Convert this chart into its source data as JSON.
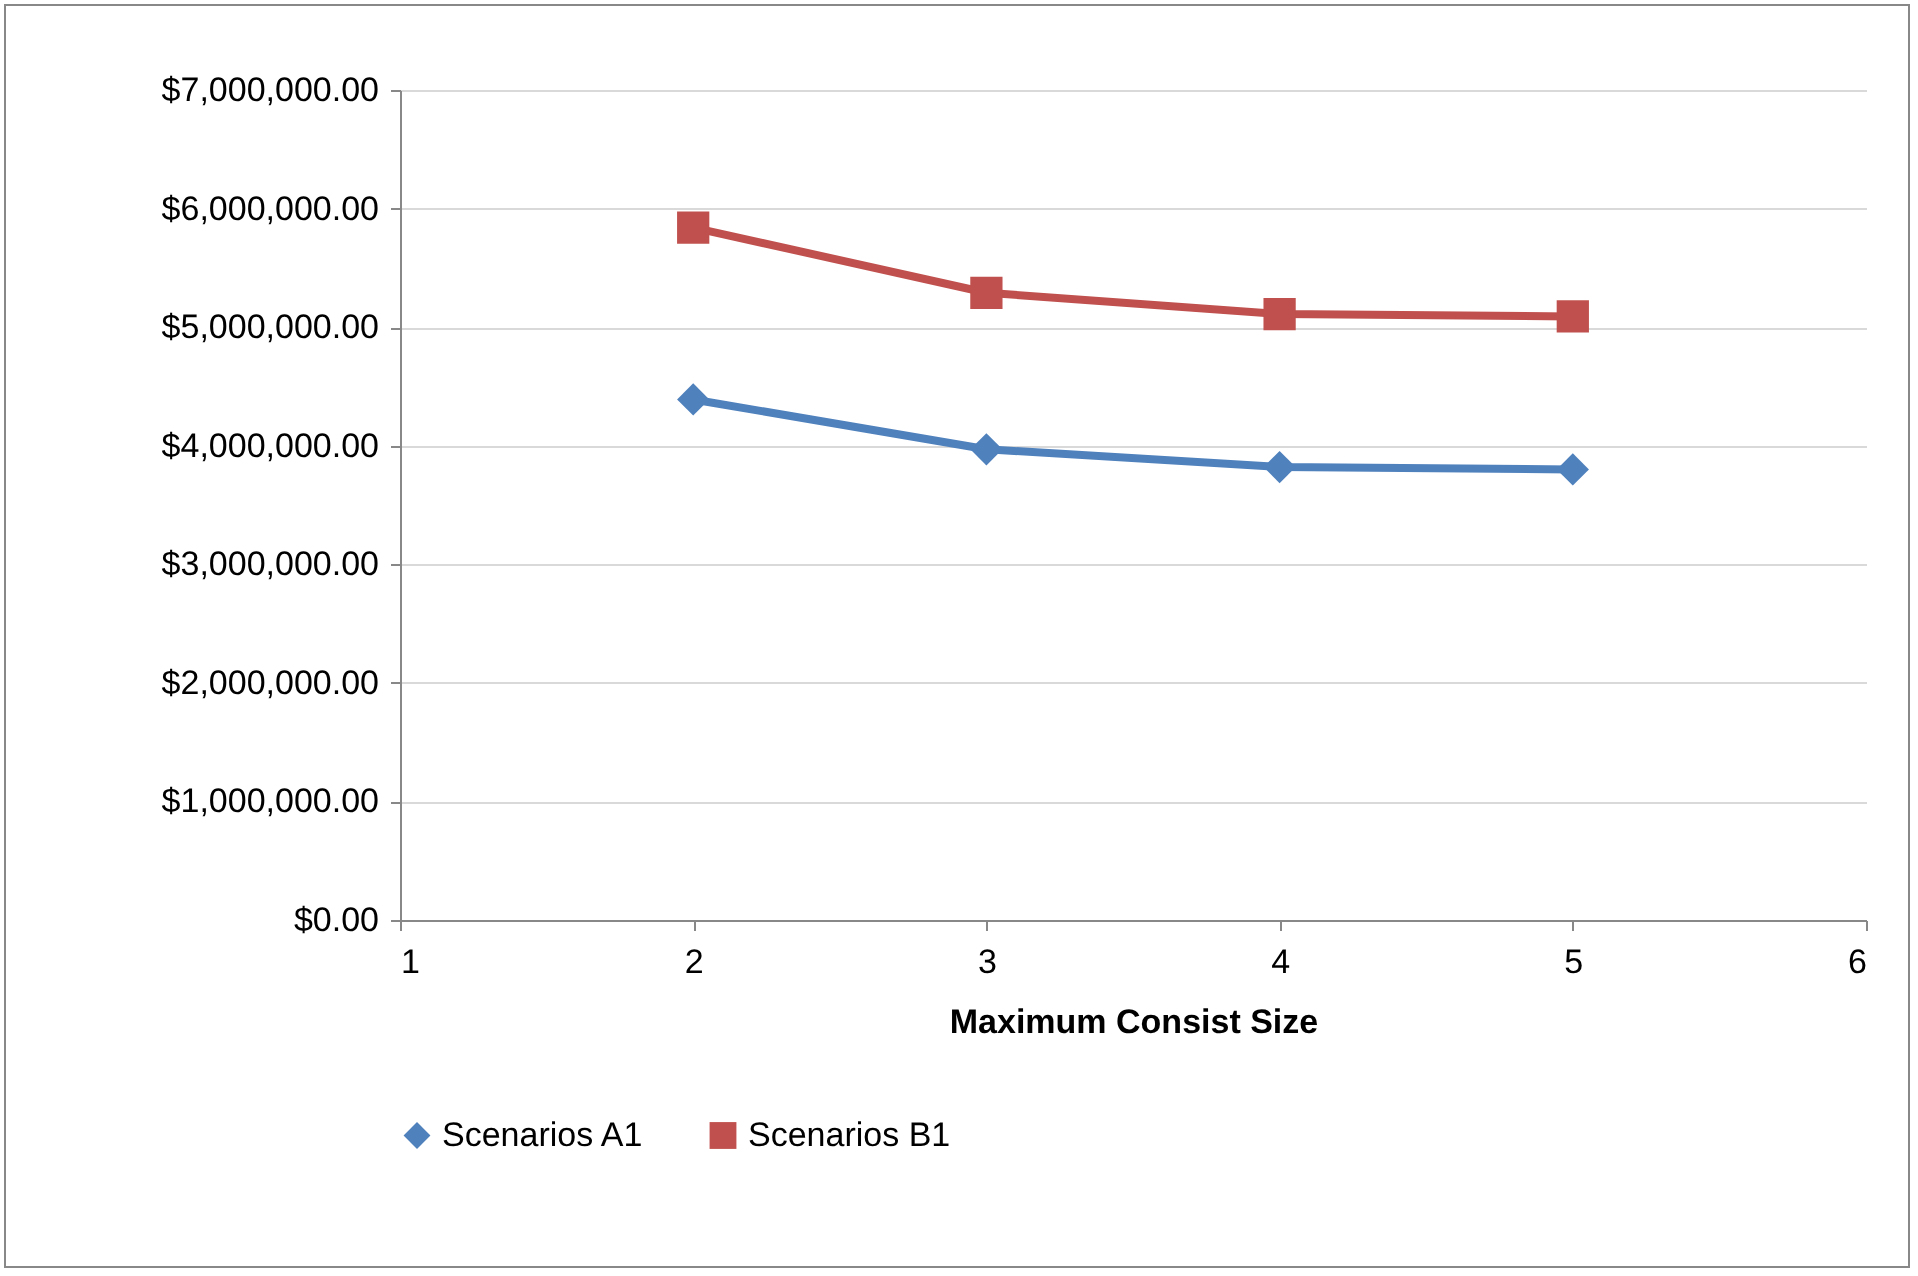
{
  "chart_data": {
    "type": "line",
    "xlabel": "Maximum Consist Size",
    "x": [
      2,
      3,
      4,
      5
    ],
    "xlim": [
      1,
      6
    ],
    "xticks": [
      1,
      2,
      3,
      4,
      5,
      6
    ],
    "ylim": [
      0,
      7000000
    ],
    "yticks": [
      {
        "value": 0,
        "label": "$0.00"
      },
      {
        "value": 1000000,
        "label": "$1,000,000.00"
      },
      {
        "value": 2000000,
        "label": "$2,000,000.00"
      },
      {
        "value": 3000000,
        "label": "$3,000,000.00"
      },
      {
        "value": 4000000,
        "label": "$4,000,000.00"
      },
      {
        "value": 5000000,
        "label": "$5,000,000.00"
      },
      {
        "value": 6000000,
        "label": "$6,000,000.00"
      },
      {
        "value": 7000000,
        "label": "$7,000,000.00"
      }
    ],
    "series": [
      {
        "name": "Scenarios A1",
        "color": "#4f81bd",
        "marker": "diamond",
        "values": [
          4390000,
          3970000,
          3820000,
          3800000
        ]
      },
      {
        "name": "Scenarios B1",
        "color": "#c0504d",
        "marker": "square",
        "values": [
          5840000,
          5290000,
          5110000,
          5090000
        ]
      }
    ],
    "grid": "y",
    "legend": "bottom",
    "line_style": "solid"
  }
}
